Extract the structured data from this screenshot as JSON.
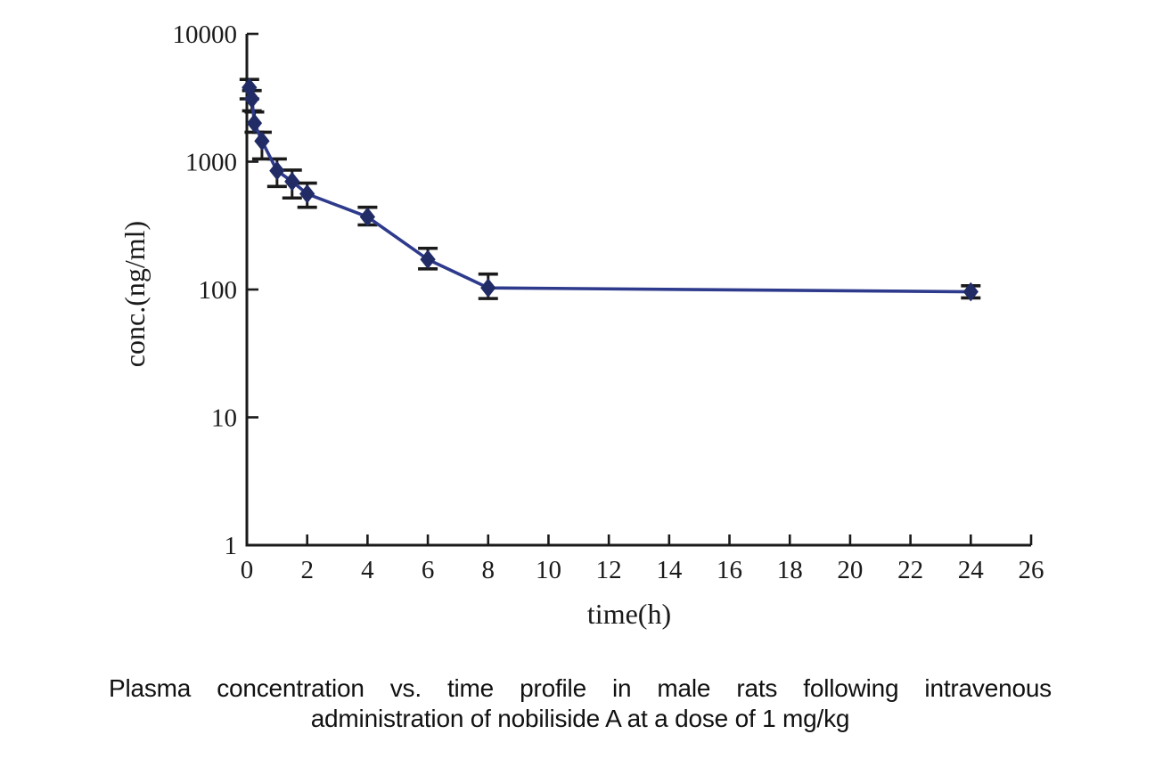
{
  "page": {
    "background": "#ffffff"
  },
  "chart_data": {
    "type": "line",
    "title": "",
    "xlabel": "time(h)",
    "ylabel": "conc.(ng/ml)",
    "x_ticks": [
      0,
      2,
      4,
      6,
      8,
      10,
      12,
      14,
      16,
      18,
      20,
      22,
      24,
      26
    ],
    "xlim": [
      0,
      26
    ],
    "y_scale": "log",
    "y_ticks": [
      1,
      10,
      100,
      1000,
      10000
    ],
    "ylim": [
      1,
      10000
    ],
    "grid": false,
    "legend": null,
    "error_bars": true,
    "colors": {
      "line": "#2e3a8c",
      "marker": "#212c66",
      "errorbar": "#1a1a1a",
      "axis": "#1a1a1a",
      "text": "#1a1a1a"
    },
    "series": [
      {
        "name": "nobiliside A 1 mg/kg IV",
        "marker": "diamond",
        "points": [
          {
            "t": 0.083,
            "conc": 3800,
            "err_lo": 3100,
            "err_hi": 4400
          },
          {
            "t": 0.167,
            "conc": 3100,
            "err_lo": 2500,
            "err_hi": 3600
          },
          {
            "t": 0.25,
            "conc": 2000,
            "err_lo": 1700,
            "err_hi": 2450
          },
          {
            "t": 0.5,
            "conc": 1450,
            "err_lo": 1050,
            "err_hi": 1700
          },
          {
            "t": 1,
            "conc": 850,
            "err_lo": 640,
            "err_hi": 1050
          },
          {
            "t": 1.5,
            "conc": 700,
            "err_lo": 520,
            "err_hi": 860
          },
          {
            "t": 2,
            "conc": 560,
            "err_lo": 440,
            "err_hi": 680
          },
          {
            "t": 4,
            "conc": 370,
            "err_lo": 320,
            "err_hi": 440
          },
          {
            "t": 6,
            "conc": 172,
            "err_lo": 145,
            "err_hi": 210
          },
          {
            "t": 8,
            "conc": 103,
            "err_lo": 85,
            "err_hi": 132
          },
          {
            "t": 24,
            "conc": 96,
            "err_lo": 86,
            "err_hi": 107
          }
        ]
      }
    ]
  },
  "caption": {
    "line1": "Plasma concentration vs. time profile in male rats following intravenous",
    "line2": "administration of nobiliside A at a dose of 1 mg/kg"
  }
}
